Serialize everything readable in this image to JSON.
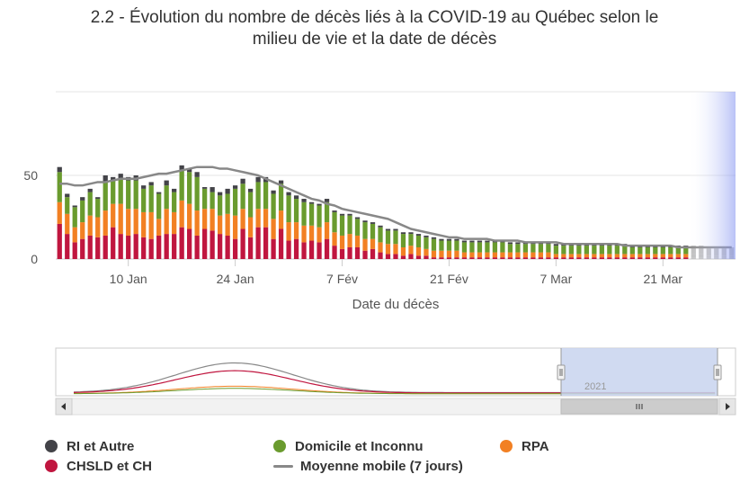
{
  "title": "2.2 - Évolution du nombre de décès liés à la COVID-19 au Québec selon le milieu de vie et la date de décès",
  "title_line1": "2.2 - Évolution du nombre de décès liés à la COVID-19 au Québec selon le",
  "title_line2": "milieu de vie et la date de décès",
  "colors": {
    "ri_autre": "#434348",
    "domicile": "#6a9b2e",
    "rpa": "#f28023",
    "chsld": "#c0163f",
    "moyenne": "#888888",
    "navigator_mask": "#c8d3ef"
  },
  "legend": [
    {
      "label": "RI et Autre",
      "key": "ri_autre",
      "shape": "dot"
    },
    {
      "label": "Domicile et Inconnu",
      "key": "domicile",
      "shape": "dot"
    },
    {
      "label": "RPA",
      "key": "rpa",
      "shape": "dot"
    },
    {
      "label": "CHSLD et CH",
      "key": "chsld",
      "shape": "dot"
    },
    {
      "label": "Moyenne mobile (7 jours)",
      "key": "moyenne",
      "shape": "line"
    }
  ],
  "chart_data": {
    "type": "bar",
    "stacked": true,
    "xlabel": "Date du décès",
    "ylabel": "",
    "ylim": [
      0,
      100
    ],
    "yticks": [
      "0",
      "50"
    ],
    "xticks": [
      "10 Jan",
      "24 Jan",
      "7 Fév",
      "21 Fév",
      "7 Mar",
      "21 Mar"
    ],
    "start_date": "2021-01-01",
    "series": [
      {
        "name": "CHSLD et CH",
        "key": "chsld",
        "values": [
          21,
          15,
          10,
          12,
          14,
          13,
          14,
          19,
          15,
          14,
          15,
          13,
          12,
          14,
          15,
          15,
          19,
          18,
          14,
          18,
          17,
          15,
          14,
          12,
          18,
          13,
          19,
          19,
          12,
          18,
          11,
          12,
          10,
          11,
          10,
          12,
          8,
          6,
          7,
          7,
          5,
          6,
          4,
          3,
          3,
          2,
          3,
          2,
          2,
          1,
          1,
          1,
          1,
          1,
          1,
          1,
          1,
          1,
          1,
          1,
          1,
          1,
          1,
          1,
          1,
          1,
          1,
          1,
          1,
          1,
          1,
          1,
          1,
          1,
          1,
          1,
          1,
          1,
          1,
          1,
          1,
          1,
          1,
          1,
          1,
          1,
          1,
          1,
          1
        ]
      },
      {
        "name": "RPA",
        "key": "rpa",
        "values": [
          13,
          12,
          9,
          10,
          12,
          12,
          15,
          14,
          18,
          16,
          15,
          15,
          16,
          10,
          15,
          13,
          16,
          15,
          15,
          12,
          13,
          11,
          13,
          14,
          12,
          12,
          11,
          11,
          12,
          11,
          11,
          10,
          10,
          9,
          9,
          10,
          8,
          8,
          8,
          7,
          7,
          6,
          6,
          6,
          6,
          5,
          5,
          5,
          4,
          4,
          4,
          4,
          4,
          3,
          3,
          3,
          3,
          3,
          3,
          3,
          3,
          3,
          3,
          3,
          3,
          2,
          2,
          2,
          2,
          2,
          2,
          2,
          2,
          2,
          2,
          2,
          2,
          2,
          2,
          2,
          2,
          2,
          2,
          2,
          2,
          1,
          1,
          1,
          1
        ]
      },
      {
        "name": "Domicile et Inconnu",
        "key": "domicile",
        "values": [
          18,
          10,
          12,
          13,
          14,
          11,
          17,
          14,
          15,
          17,
          17,
          14,
          16,
          15,
          14,
          12,
          18,
          19,
          20,
          12,
          10,
          12,
          12,
          16,
          15,
          15,
          16,
          16,
          15,
          16,
          16,
          14,
          14,
          13,
          13,
          12,
          12,
          12,
          11,
          10,
          10,
          9,
          9,
          8,
          8,
          8,
          7,
          7,
          7,
          7,
          6,
          6,
          6,
          6,
          6,
          6,
          6,
          6,
          6,
          5,
          5,
          5,
          5,
          5,
          5,
          5,
          5,
          5,
          5,
          5,
          5,
          5,
          5,
          5,
          5,
          4,
          4,
          4,
          4,
          4,
          4,
          4,
          4,
          4,
          4,
          4,
          4,
          4,
          4
        ]
      },
      {
        "name": "RI et Autre",
        "key": "ri_autre",
        "values": [
          3,
          2,
          1,
          2,
          2,
          1,
          4,
          2,
          3,
          2,
          3,
          2,
          2,
          1,
          3,
          2,
          3,
          2,
          3,
          1,
          3,
          2,
          3,
          2,
          3,
          2,
          3,
          3,
          2,
          2,
          2,
          2,
          2,
          1,
          1,
          2,
          1,
          1,
          1,
          1,
          1,
          1,
          1,
          1,
          1,
          1,
          1,
          1,
          1,
          1,
          1,
          1,
          1,
          1,
          1,
          1,
          1,
          1,
          1,
          1,
          1,
          1,
          1,
          1,
          1,
          1,
          1,
          1,
          1,
          1,
          1,
          1,
          1,
          1,
          1,
          1,
          1,
          1,
          1,
          1,
          1,
          1,
          1,
          1,
          1,
          1,
          1,
          1,
          1
        ]
      }
    ],
    "moving_average": {
      "name": "Moyenne mobile (7 jours)",
      "key": "moyenne",
      "values": [
        45,
        45,
        44,
        44,
        45,
        46,
        46,
        47,
        48,
        48,
        48,
        49,
        50,
        51,
        51,
        52,
        53,
        54,
        55,
        55,
        55,
        54,
        54,
        53,
        52,
        51,
        50,
        48,
        46,
        44,
        42,
        40,
        38,
        36,
        35,
        33,
        32,
        30,
        29,
        28,
        27,
        26,
        25,
        24,
        22,
        20,
        18,
        17,
        16,
        15,
        14,
        13,
        13,
        12,
        12,
        12,
        12,
        11,
        11,
        11,
        11,
        10,
        10,
        10,
        10,
        10,
        9,
        9,
        9,
        9,
        9,
        9,
        9,
        9,
        8,
        8,
        8,
        8,
        8,
        8,
        8,
        7,
        7,
        7,
        7,
        7,
        7,
        7,
        7
      ]
    },
    "navigator": {
      "xticks": [
        "2021"
      ]
    }
  }
}
